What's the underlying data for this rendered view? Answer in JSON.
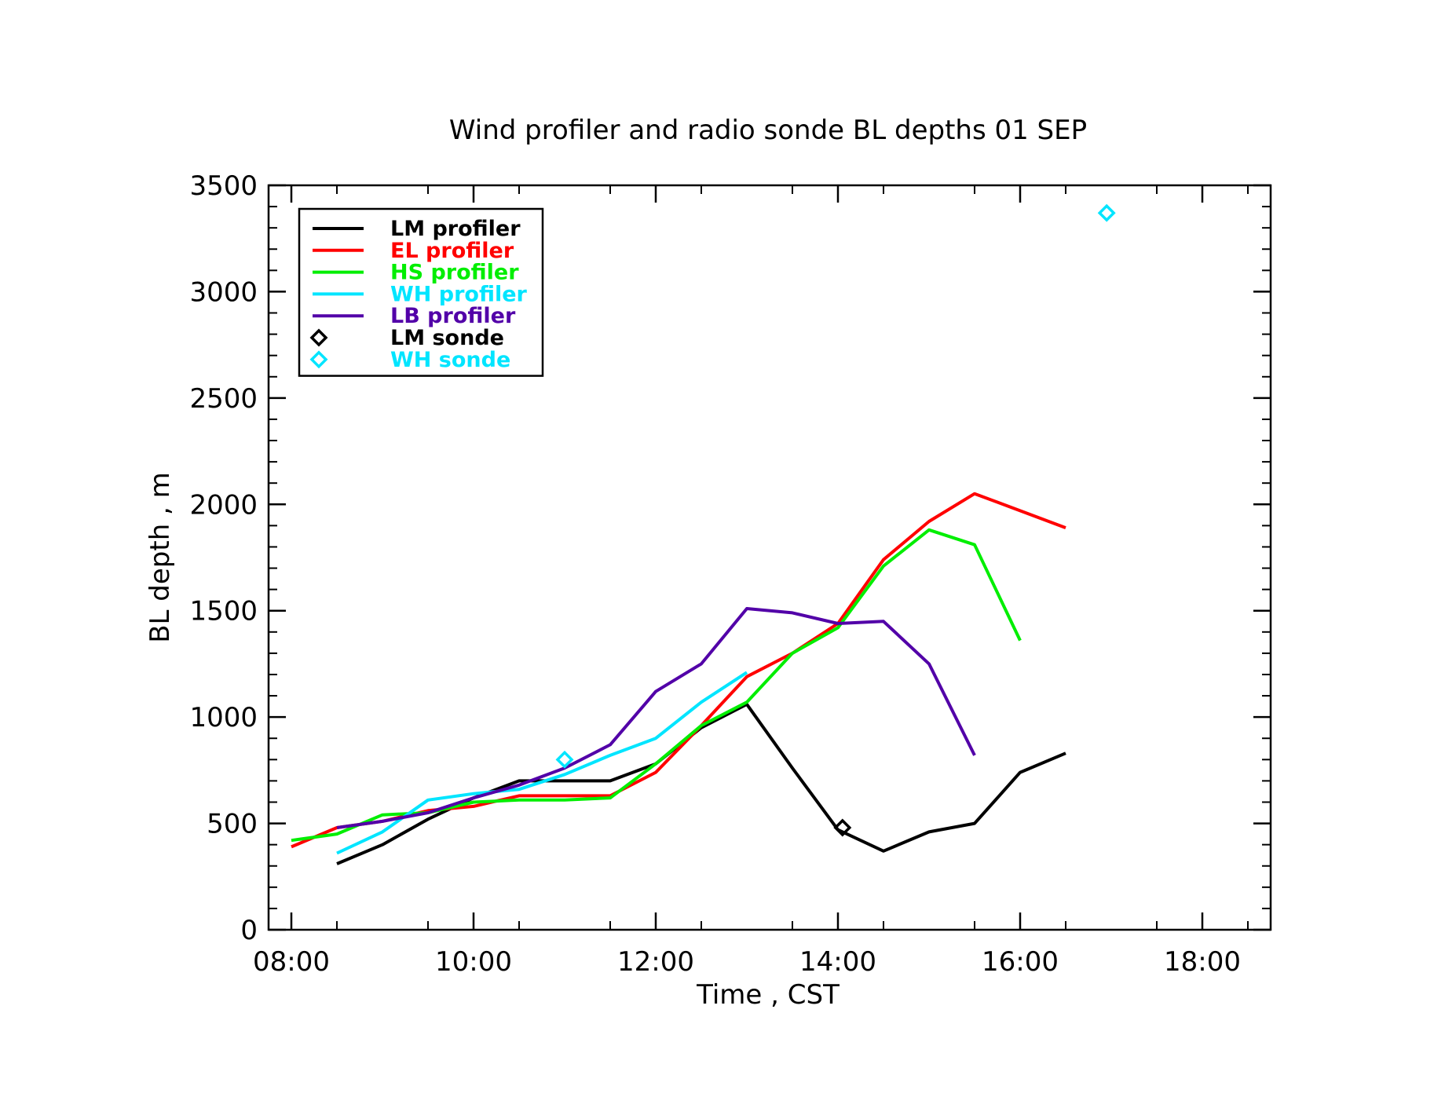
{
  "chart_data": {
    "type": "line",
    "title": "Wind profiler and radio sonde BL depths  01 SEP",
    "xlabel": "Time , CST",
    "ylabel": "BL depth , m",
    "xlim": [
      7.75,
      18.75
    ],
    "ylim": [
      0,
      3500
    ],
    "xticks": [
      8,
      10,
      12,
      14,
      16,
      18
    ],
    "xtick_labels": [
      "08:00",
      "10:00",
      "12:00",
      "14:00",
      "16:00",
      "18:00"
    ],
    "yticks": [
      0,
      500,
      1000,
      1500,
      2000,
      2500,
      3000,
      3500
    ],
    "ytick_labels": [
      "0",
      "500",
      "1000",
      "1500",
      "2000",
      "2500",
      "3000",
      "3500"
    ],
    "grid": false,
    "legend_position": "top-left",
    "series": [
      {
        "name": "LM profiler",
        "kind": "line",
        "color": "#000000",
        "x": [
          8.5,
          9.0,
          9.5,
          10.0,
          10.5,
          11.0,
          11.5,
          12.0,
          12.5,
          13.0,
          13.5,
          14.0,
          14.5,
          15.0,
          15.5,
          16.0,
          16.5
        ],
        "y": [
          310,
          400,
          520,
          620,
          700,
          700,
          700,
          780,
          950,
          1060,
          760,
          470,
          370,
          460,
          500,
          740,
          830
        ]
      },
      {
        "name": "EL profiler",
        "kind": "line",
        "color": "#ff0000",
        "x": [
          8.0,
          8.5,
          9.0,
          9.5,
          10.0,
          10.5,
          11.0,
          11.5,
          12.0,
          12.5,
          13.0,
          13.5,
          14.0,
          14.5,
          15.0,
          15.5,
          16.0,
          16.5
        ],
        "y": [
          390,
          480,
          510,
          560,
          580,
          630,
          630,
          630,
          740,
          960,
          1190,
          1300,
          1440,
          1740,
          1920,
          2050,
          1970,
          1890
        ]
      },
      {
        "name": "HS profiler",
        "kind": "line",
        "color": "#00ee00",
        "x": [
          8.0,
          8.5,
          9.0,
          9.5,
          10.0,
          10.5,
          11.0,
          11.5,
          12.0,
          12.5,
          13.0,
          13.5,
          14.0,
          14.5,
          15.0,
          15.5,
          16.0
        ],
        "y": [
          420,
          450,
          540,
          550,
          600,
          610,
          610,
          620,
          780,
          960,
          1070,
          1300,
          1420,
          1710,
          1880,
          1810,
          1360
        ]
      },
      {
        "name": "WH profiler",
        "kind": "line",
        "color": "#00e5ff",
        "x": [
          8.5,
          9.0,
          9.5,
          10.0,
          10.5,
          11.0,
          11.5,
          12.0,
          12.5,
          13.0
        ],
        "y": [
          360,
          460,
          610,
          640,
          660,
          730,
          820,
          900,
          1070,
          1210
        ]
      },
      {
        "name": "LB profiler",
        "kind": "line",
        "color": "#5200a8",
        "x": [
          8.5,
          9.0,
          9.5,
          10.0,
          10.5,
          11.0,
          11.5,
          12.0,
          12.5,
          13.0,
          13.5,
          14.0,
          14.5,
          15.0,
          15.5
        ],
        "y": [
          480,
          510,
          550,
          620,
          680,
          760,
          870,
          1120,
          1250,
          1510,
          1490,
          1440,
          1450,
          1250,
          820
        ]
      },
      {
        "name": "LM sonde",
        "kind": "marker",
        "marker": "diamond",
        "color": "#000000",
        "x": [
          14.05
        ],
        "y": [
          480
        ]
      },
      {
        "name": "WH sonde",
        "kind": "marker",
        "marker": "diamond",
        "color": "#00e5ff",
        "x": [
          11.0,
          16.95
        ],
        "y": [
          800,
          3370
        ]
      }
    ]
  }
}
